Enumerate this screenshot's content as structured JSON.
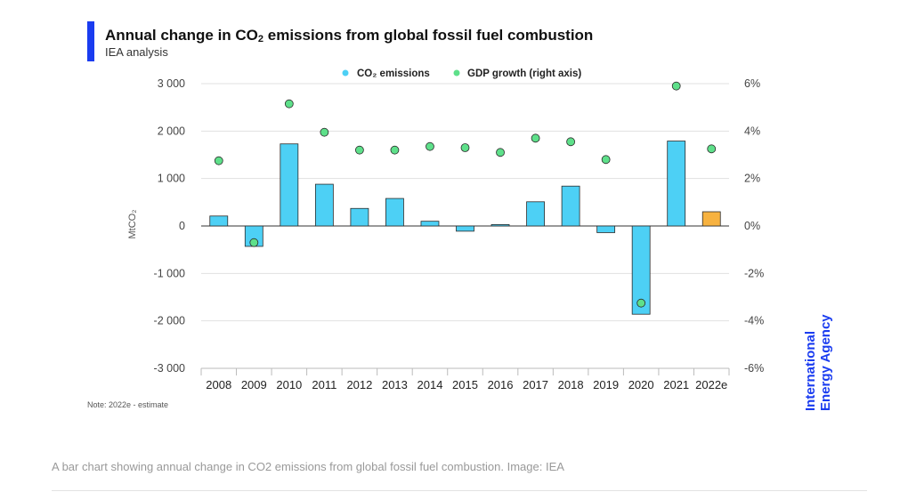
{
  "header": {
    "title_prefix": "Annual change in CO",
    "title_sub": "2",
    "title_suffix": " emissions from global fossil fuel combustion",
    "subtitle": "IEA analysis"
  },
  "note": "Note: 2022e - estimate",
  "caption": "A bar chart showing annual change in CO2 emissions from global fossil fuel combustion. Image: IEA",
  "brand": {
    "line1": "International",
    "line2": "Energy Agency",
    "color": "#1a3cf0"
  },
  "colors": {
    "bar": "#4dd0f5",
    "bar_estimate": "#f7b240",
    "dot": "#5ee08a",
    "accent": "#1a3cf0"
  },
  "chart_data": {
    "type": "bar",
    "title": "Annual change in CO2 emissions from global fossil fuel combustion",
    "ylabel": "MtCO₂",
    "y_ticks": [
      "3 000",
      "2 000",
      "1 000",
      "0",
      "-1 000",
      "-2 000",
      "-3 000"
    ],
    "y2_ticks": [
      "6%",
      "4%",
      "2%",
      "0%",
      "-2%",
      "-4%",
      "-6%"
    ],
    "ylim": [
      -3000,
      3000
    ],
    "y2lim": [
      -6,
      6
    ],
    "legend_position": "top",
    "categories": [
      "2008",
      "2009",
      "2010",
      "2011",
      "2012",
      "2013",
      "2014",
      "2015",
      "2016",
      "2017",
      "2018",
      "2019",
      "2020",
      "2021",
      "2022e"
    ],
    "series": [
      {
        "name": "CO₂ emissions",
        "type": "bar",
        "axis": "left",
        "values": [
          210,
          -430,
          1730,
          880,
          370,
          580,
          100,
          -110,
          30,
          510,
          840,
          -140,
          -1860,
          1790,
          300
        ]
      },
      {
        "name": "GDP growth (right axis)",
        "type": "scatter",
        "axis": "right",
        "values": [
          2.75,
          -0.7,
          5.15,
          3.95,
          3.2,
          3.2,
          3.35,
          3.3,
          3.1,
          3.7,
          3.55,
          2.8,
          -3.25,
          5.9,
          3.25
        ]
      }
    ],
    "estimate_category": "2022e"
  }
}
